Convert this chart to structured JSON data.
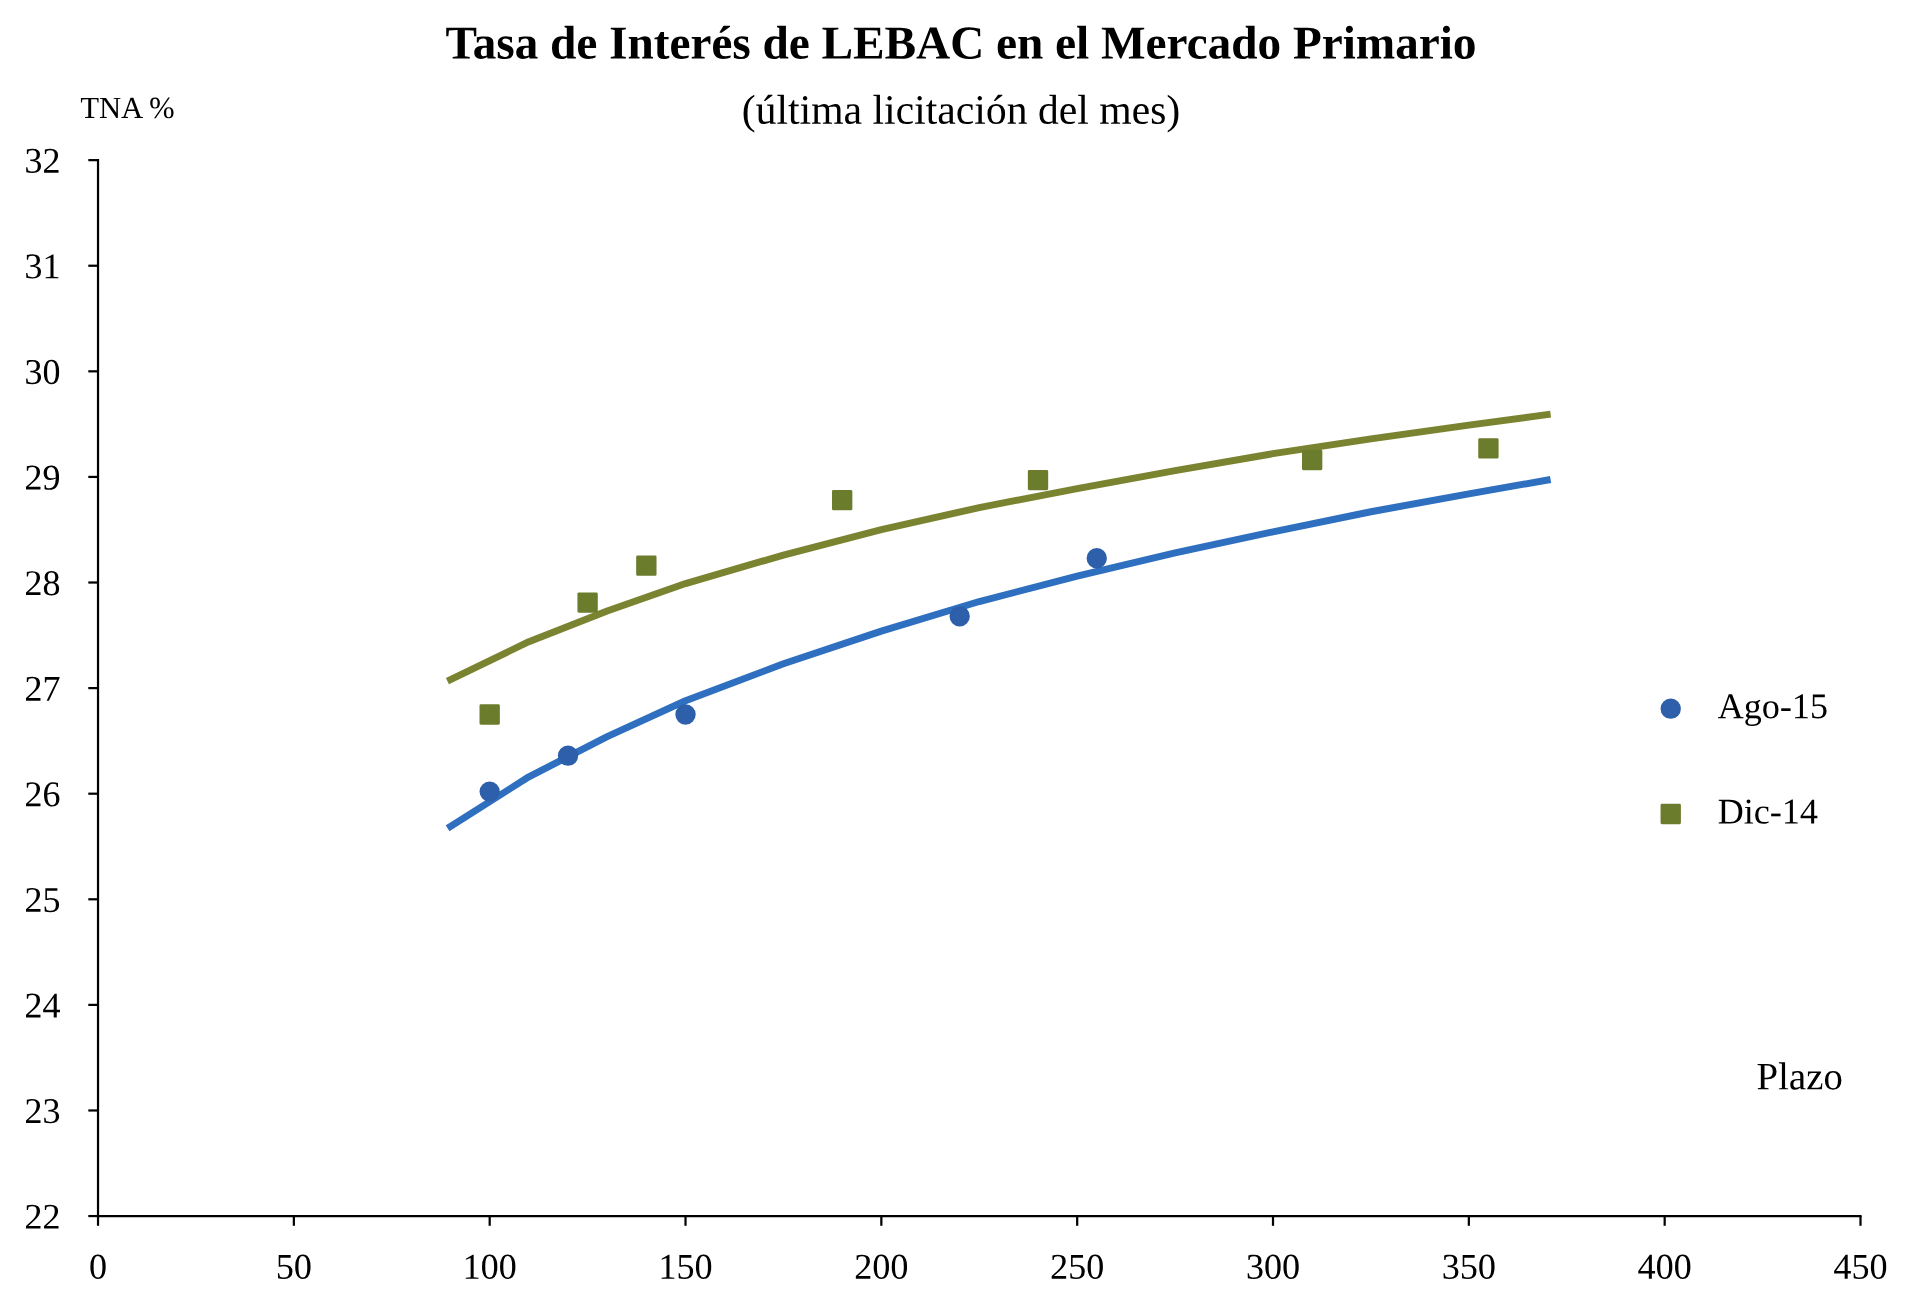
{
  "chart_data": {
    "type": "scatter",
    "title": "Tasa de Interés de LEBAC en el Mercado Primario",
    "subtitle": "(última licitación del mes)",
    "xlabel": "Plazo",
    "ylabel": "TNA %",
    "xlim": [
      0,
      450
    ],
    "xticks": [
      0,
      50,
      100,
      150,
      200,
      250,
      300,
      350,
      400,
      450
    ],
    "ylim": [
      22,
      32
    ],
    "yticks": [
      22,
      23,
      24,
      25,
      26,
      27,
      28,
      29,
      30,
      31,
      32
    ],
    "grid": false,
    "legend": "right",
    "series": [
      {
        "name": "Ago-15",
        "marker": "circle",
        "color": "#2e5faa",
        "x": [
          100,
          120,
          150,
          220,
          255
        ],
        "values": [
          26.02,
          26.36,
          26.75,
          27.68,
          28.23
        ]
      },
      {
        "name": "Dic-14",
        "marker": "square",
        "color": "#6b7c2d",
        "x": [
          100,
          125,
          140,
          190,
          240,
          310,
          355
        ],
        "values": [
          26.75,
          27.81,
          28.16,
          28.78,
          28.97,
          29.16,
          29.27
        ]
      },
      {
        "type": "line",
        "color": "#2e6fbf",
        "x": [
          90,
          110,
          130,
          150,
          175,
          200,
          225,
          250,
          275,
          300,
          325,
          350,
          370
        ],
        "values": [
          25.69,
          26.16,
          26.54,
          26.88,
          27.23,
          27.54,
          27.82,
          28.06,
          28.28,
          28.48,
          28.67,
          28.84,
          28.97
        ]
      },
      {
        "type": "line",
        "color": "#7a8430",
        "x": [
          90,
          110,
          130,
          150,
          175,
          200,
          225,
          250,
          275,
          300,
          325,
          350,
          370
        ],
        "values": [
          27.08,
          27.44,
          27.73,
          27.99,
          28.26,
          28.5,
          28.71,
          28.89,
          29.06,
          29.22,
          29.36,
          29.49,
          29.59
        ]
      }
    ]
  }
}
